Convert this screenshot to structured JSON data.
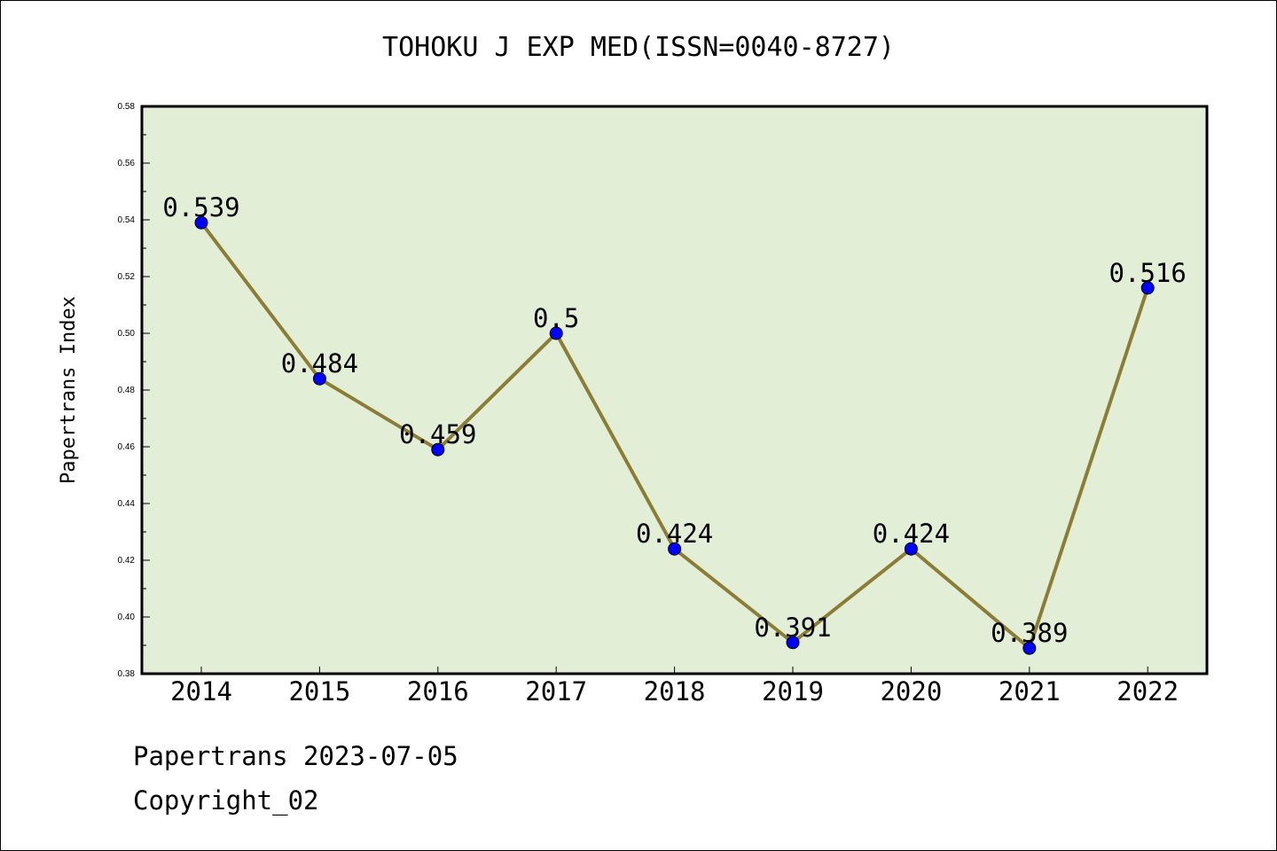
{
  "title": "TOHOKU J EXP MED(ISSN=0040-8727)",
  "footer": {
    "line1": "Papertrans 2023-07-05",
    "line2": "Copyright_02"
  },
  "colors": {
    "plot_background": "#e2efd6",
    "line": "#8b7d35",
    "marker": "#0000ff"
  },
  "chart_data": {
    "type": "line",
    "x": [
      "2014",
      "2015",
      "2016",
      "2017",
      "2018",
      "2019",
      "2020",
      "2021",
      "2022"
    ],
    "series": [
      {
        "values": [
          0.539,
          0.484,
          0.459,
          0.5,
          0.424,
          0.391,
          0.424,
          0.389,
          0.516
        ],
        "labels": [
          "0.539",
          "0.484",
          "0.459",
          "0.5",
          "0.424",
          "0.391",
          "0.424",
          "0.389",
          "0.516"
        ]
      }
    ],
    "ylabel": "Papertrans Index",
    "xlabel": "",
    "ylim": [
      0.38,
      0.58
    ],
    "yticks": [
      "0.38",
      "0.40",
      "0.42",
      "0.44",
      "0.46",
      "0.48",
      "0.50",
      "0.52",
      "0.54",
      "0.56",
      "0.58"
    ],
    "grid": false,
    "legend": "none"
  }
}
